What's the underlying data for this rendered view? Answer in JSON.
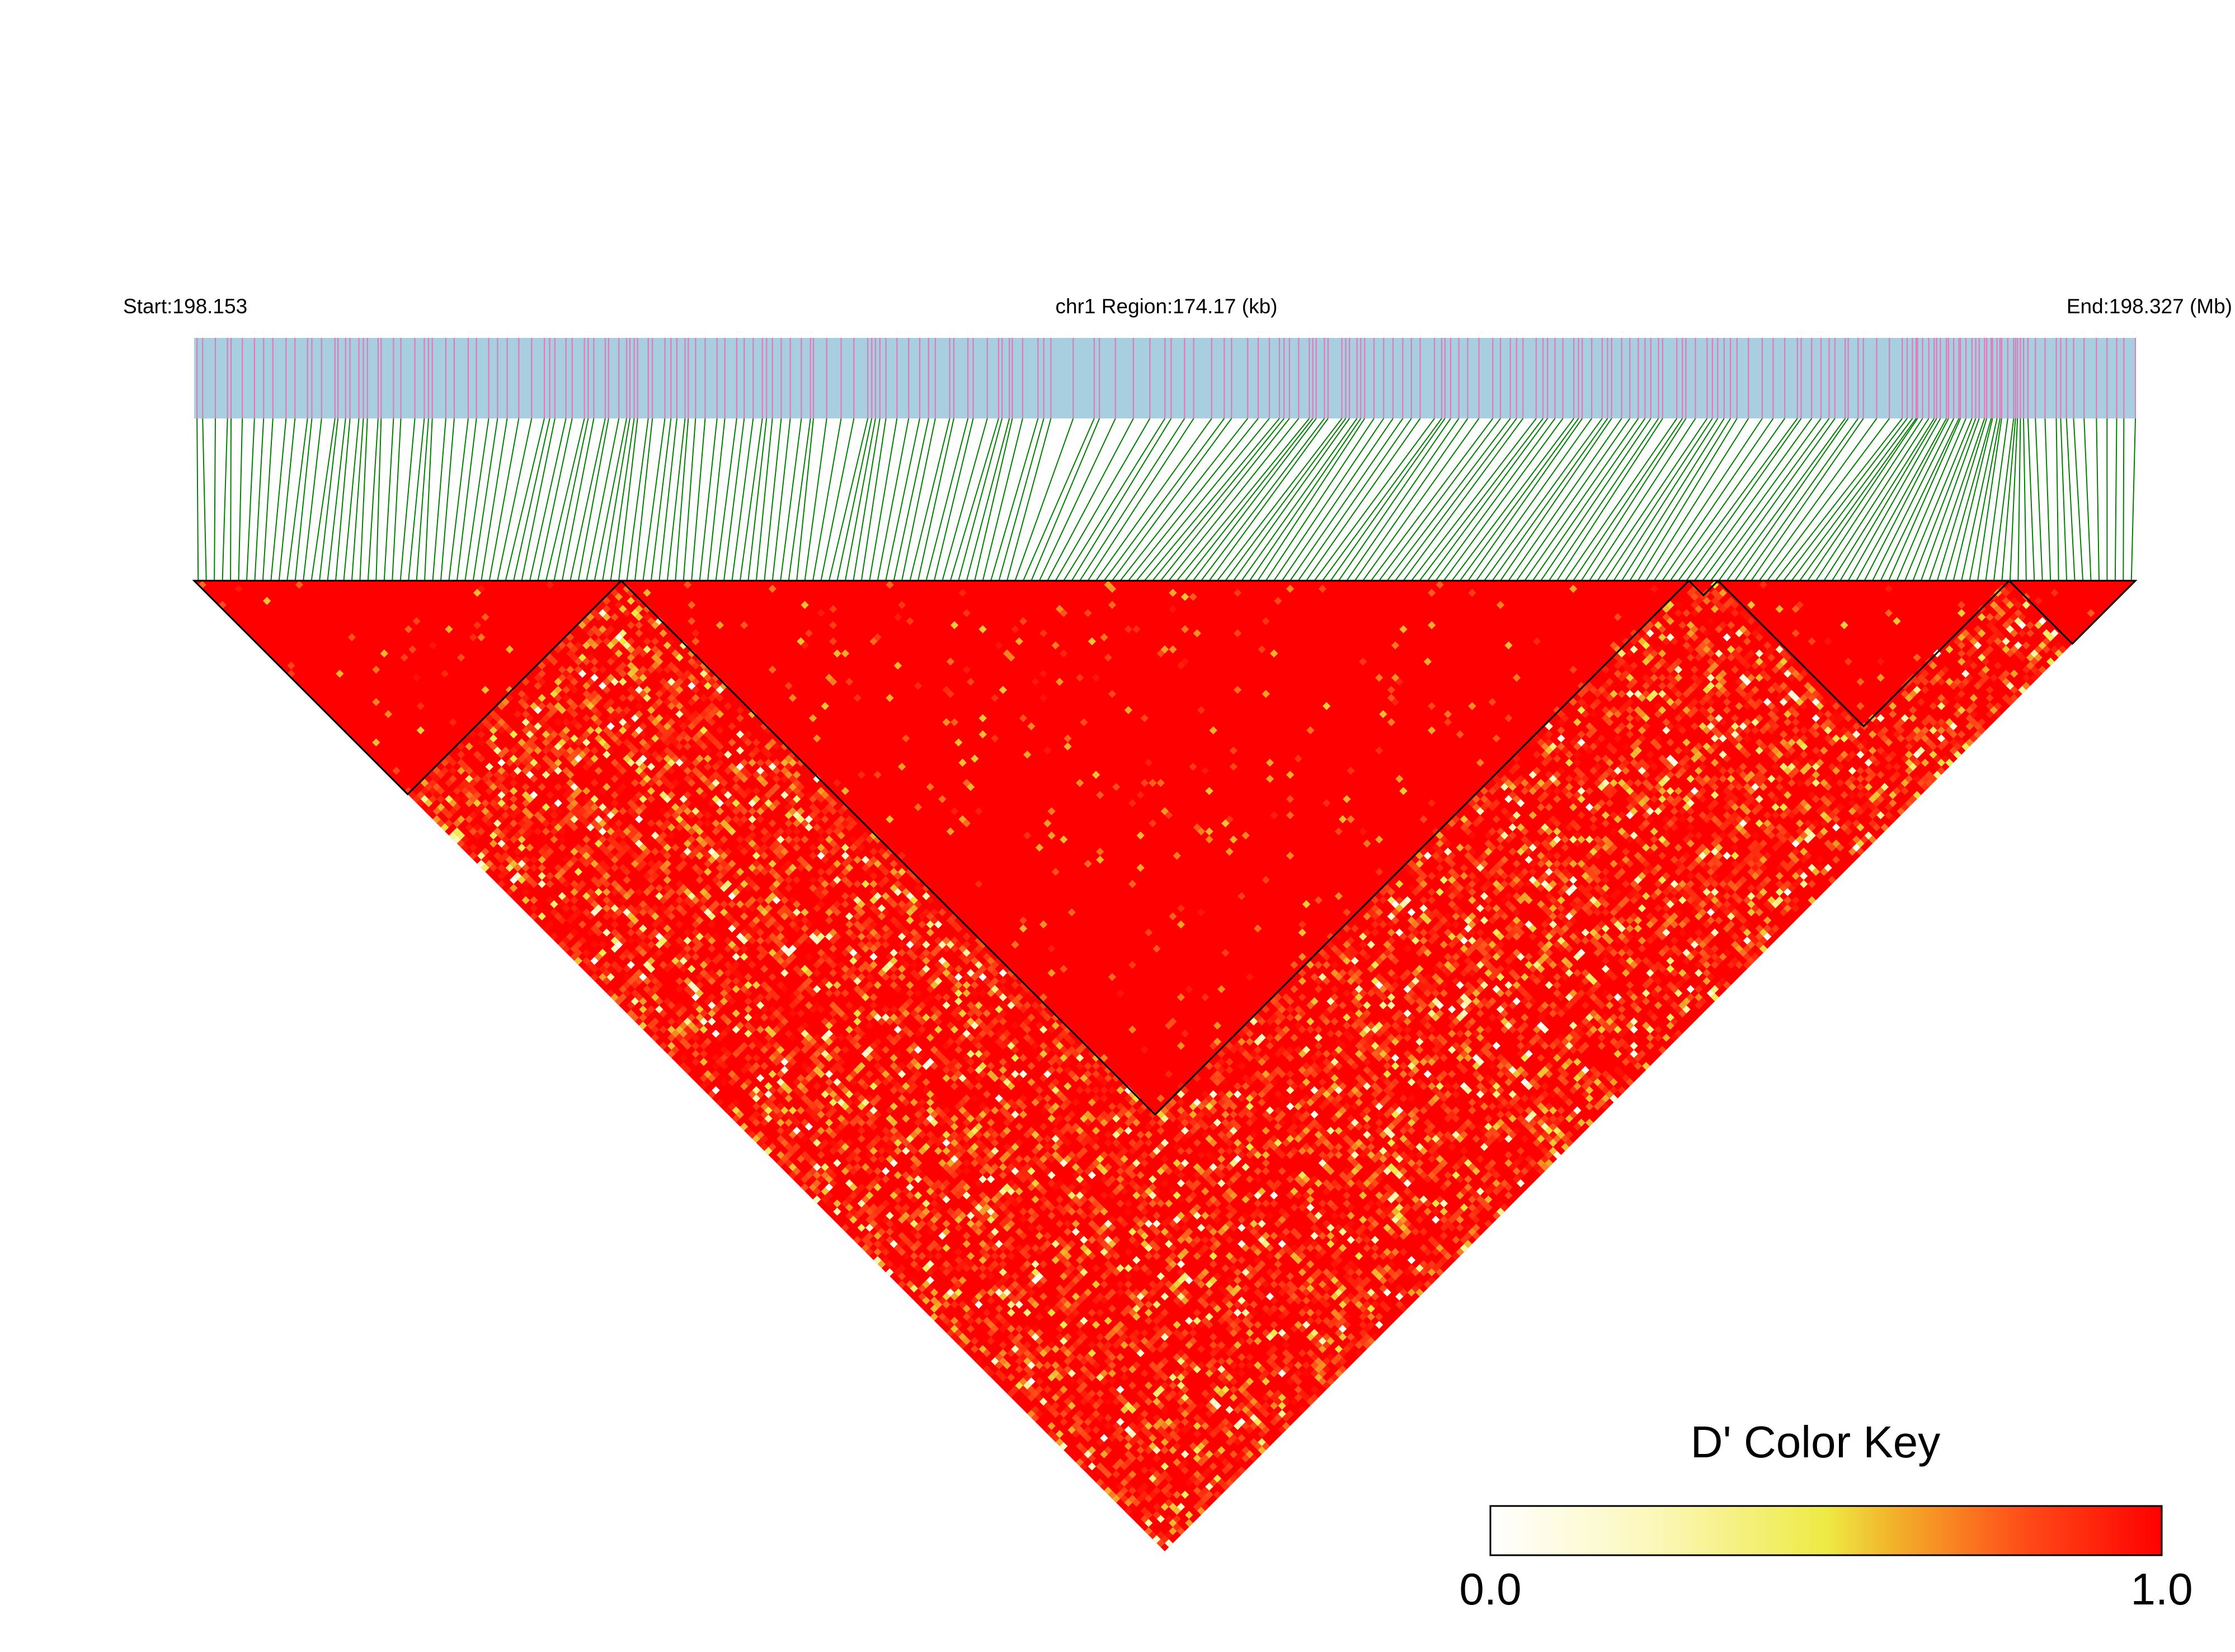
{
  "chart_data": {
    "type": "heatmap",
    "title": "",
    "xlabel": "",
    "ylabel": "",
    "chromosome": "chr1",
    "region_start_label": "Start:198.153",
    "region_center_label": "chr1 Region:174.17 (kb)",
    "region_end_label": "End:198.327 (Mb)",
    "region_start_mb": 198.153,
    "region_end_mb": 198.327,
    "region_size_kb": 174.17,
    "snp_count_approx": 240,
    "haplotype_blocks_fraction": [
      [
        0.0,
        0.22
      ],
      [
        0.22,
        0.77
      ],
      [
        0.77,
        0.785
      ],
      [
        0.785,
        0.935
      ],
      [
        0.935,
        1.0
      ]
    ],
    "color_key": {
      "title": "D' Color Key",
      "min_label": "0.0",
      "max_label": "1.0",
      "min": 0.0,
      "max": 1.0,
      "stops": [
        "#ffffff",
        "#ffffcc",
        "#eeee44",
        "#f5a020",
        "#ff4015",
        "#ff0000"
      ]
    },
    "colors": {
      "snp_bar_background": "#a8cfe0",
      "snp_tick": "#e07ab8",
      "connector": "#008000",
      "high_ld": "#ff0000",
      "block_border": "#000000"
    }
  }
}
